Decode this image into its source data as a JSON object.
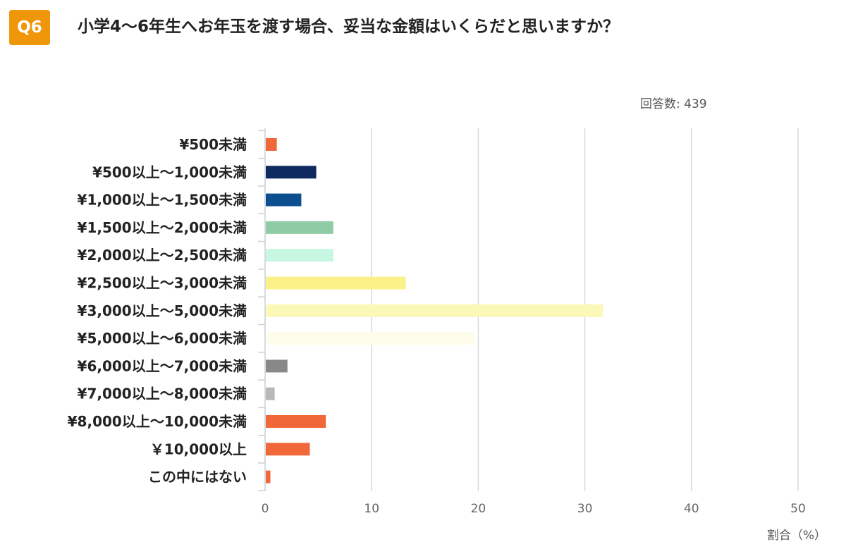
{
  "header": {
    "badge": "Q6",
    "badge_color": "#f0960a",
    "question": "小学4～6年生へお年玉を渡す場合、妥当な金額はいくらだと思いますか？",
    "responses": "回答数: 439"
  },
  "chart_data": {
    "type": "bar",
    "orientation": "horizontal",
    "categories": [
      "¥500未満",
      "¥500以上～1,000未満",
      "¥1,000以上～1,500未満",
      "¥1,500以上～2,000未満",
      "¥2,000以上～2,500未満",
      "¥2,500以上～3,000未満",
      "¥3,000以上～5,000未満",
      "¥5,000以上～6,000未満",
      "¥6,000以上～7,000未満",
      "¥7,000以上～8,000未満",
      "¥8,000以上～10,000未満",
      "￥10,000以上",
      "この中にはない"
    ],
    "values": [
      1.1,
      4.8,
      3.4,
      6.4,
      6.4,
      13.2,
      31.7,
      19.6,
      2.1,
      0.9,
      5.7,
      4.2,
      0.5
    ],
    "colors": [
      "#f0683a",
      "#0f2a5e",
      "#0b4f8f",
      "#8fcca6",
      "#c7f7e0",
      "#fcf088",
      "#fbf8b8",
      "#fefdeb",
      "#888888",
      "#b8b8b8",
      "#f0683a",
      "#f0683a",
      "#f0683a"
    ],
    "xlabel": "割合（%）",
    "xlim": [
      0,
      50
    ],
    "xticks": [
      0,
      10,
      20,
      30,
      40,
      50
    ],
    "grid": true,
    "legend": "none"
  }
}
